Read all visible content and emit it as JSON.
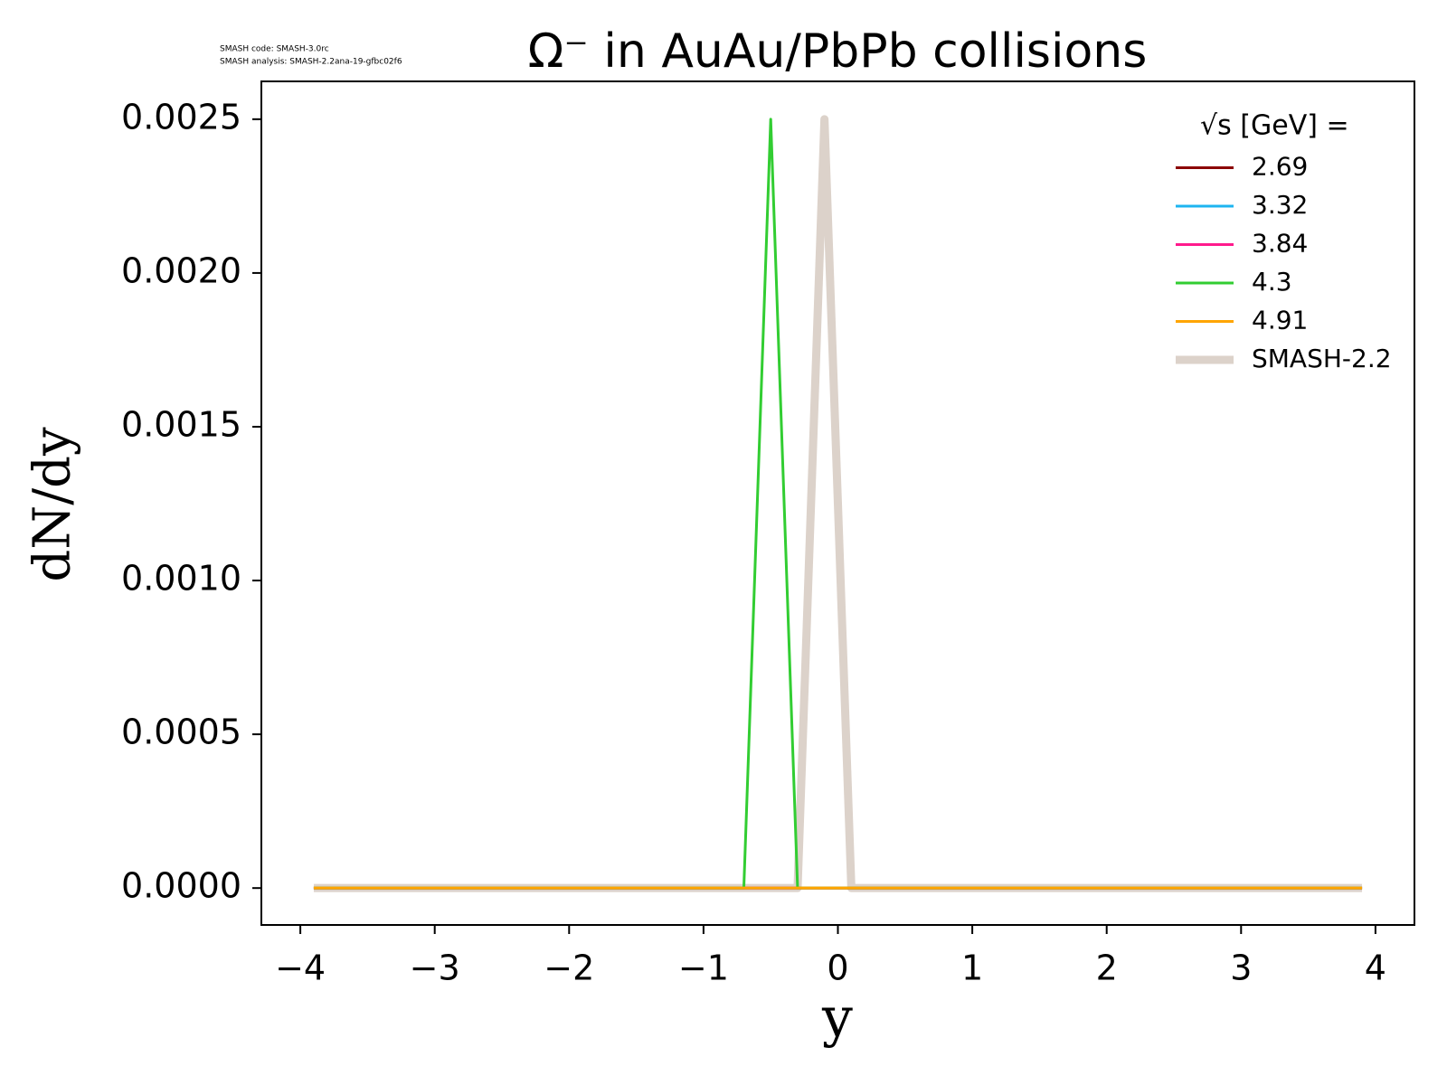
{
  "chart_data": {
    "type": "line",
    "title": "Ω⁻ in AuAu/PbPb collisions",
    "annotations": [
      "SMASH code:      SMASH-3.0rc",
      "SMASH analysis: SMASH-2.2ana-19-gfbc02f6"
    ],
    "x_label": "y",
    "y_label": "dN/dy",
    "legend_title": "√s  [GeV] =",
    "legend_position": "upper right",
    "xlim": [
      -4.29,
      4.29
    ],
    "ylim": [
      -0.00012,
      0.002623
    ],
    "xticks": [
      {
        "value": -4,
        "label": "−4"
      },
      {
        "value": -3,
        "label": "−3"
      },
      {
        "value": -2,
        "label": "−2"
      },
      {
        "value": -1,
        "label": "−1"
      },
      0,
      1,
      2,
      3,
      4
    ],
    "yticks": [
      {
        "value": 0,
        "label": "0.0000"
      },
      {
        "value": 0.0005,
        "label": "0.0005"
      },
      {
        "value": 0.001,
        "label": "0.0010"
      },
      {
        "value": 0.0015,
        "label": "0.0015"
      },
      {
        "value": 0.002,
        "label": "0.0020"
      },
      {
        "value": 0.0025,
        "label": "0.0025"
      }
    ],
    "series": [
      {
        "name": "SMASH-2.2",
        "color": "#dcd2ca",
        "width": 9,
        "x": [
          -3.9,
          -0.3,
          -0.1,
          0.1,
          3.9
        ],
        "values": [
          0,
          0,
          0.0025,
          0,
          0
        ]
      },
      {
        "name": "2.69",
        "color": "#8b0000",
        "width": 3,
        "x": [
          -3.9,
          3.9
        ],
        "values": [
          0,
          0
        ]
      },
      {
        "name": "3.32",
        "color": "#1eb4f0",
        "width": 3,
        "x": [
          -3.9,
          3.9
        ],
        "values": [
          0,
          0
        ]
      },
      {
        "name": "3.84",
        "color": "#ff1a8c",
        "width": 3,
        "x": [
          -3.9,
          3.9
        ],
        "values": [
          0,
          0
        ]
      },
      {
        "name": "4.3",
        "color": "#32cd32",
        "width": 3,
        "x": [
          -3.9,
          -0.7,
          -0.5,
          -0.3,
          3.9
        ],
        "values": [
          0,
          0,
          0.0025,
          0,
          0
        ]
      },
      {
        "name": "4.91",
        "color": "#ffa500",
        "width": 3,
        "x": [
          -3.9,
          3.9
        ],
        "values": [
          0,
          0
        ]
      }
    ],
    "legend_order": [
      1,
      2,
      3,
      4,
      5,
      0
    ]
  }
}
